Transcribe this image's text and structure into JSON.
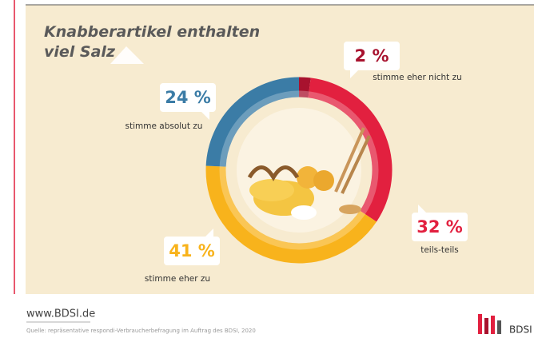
{
  "chart_data": {
    "type": "donut",
    "title": "Knabberartikel enthalten viel Salz",
    "categories": [
      "stimme eher nicht zu",
      "teils-teils",
      "stimme eher zu",
      "stimme absolut zu"
    ],
    "values": [
      2,
      32,
      41,
      24
    ],
    "value_labels": [
      "2 %",
      "32 %",
      "41 %",
      "24 %"
    ],
    "colors": [
      "#a8122e",
      "#e2203f",
      "#f8b31c",
      "#3b7ca6"
    ]
  },
  "footer": {
    "website": "www.BDSI.de",
    "source": "Quelle: repräsentative respondi-Verbraucherbefragung im Auftrag des BDSI, 2020",
    "logo": "BDSI"
  }
}
